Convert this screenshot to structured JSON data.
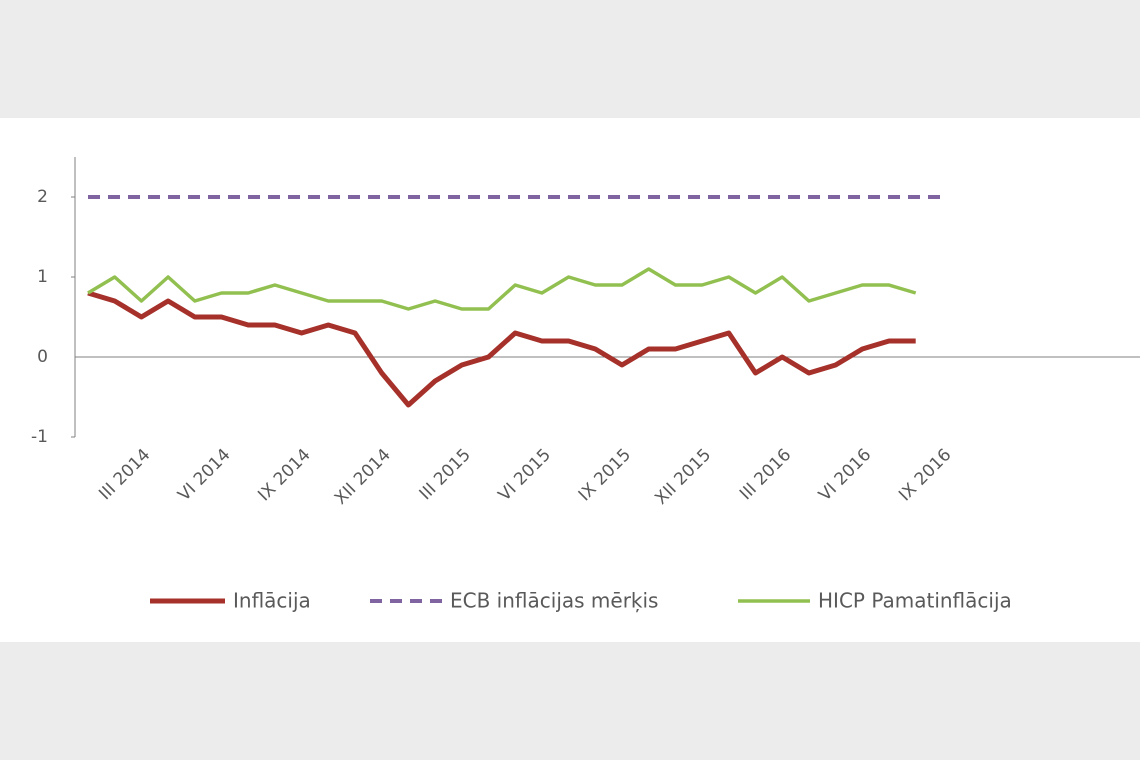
{
  "chart_data": {
    "type": "line",
    "categories": [
      null,
      null,
      "III 2014",
      null,
      null,
      "VI 2014",
      null,
      null,
      "IX 2014",
      null,
      null,
      "XII 2014",
      null,
      null,
      "III 2015",
      null,
      null,
      "VI 2015",
      null,
      null,
      "IX 2015",
      null,
      null,
      "XII 2015",
      null,
      null,
      "III 2016",
      null,
      null,
      "VI 2016",
      null,
      null,
      "IX 2016"
    ],
    "series": [
      {
        "name": "Inflācija",
        "color": "#a5312a",
        "dash": false,
        "values": [
          0.8,
          0.7,
          0.5,
          0.7,
          0.5,
          0.5,
          0.4,
          0.4,
          0.3,
          0.4,
          0.3,
          -0.2,
          -0.6,
          -0.3,
          -0.1,
          0.0,
          0.3,
          0.2,
          0.2,
          0.1,
          -0.1,
          0.1,
          0.1,
          0.2,
          0.3,
          -0.2,
          0.0,
          -0.2,
          -0.1,
          0.1,
          0.2,
          0.2,
          null
        ]
      },
      {
        "name": "ECB inflācijas mērķis",
        "color": "#8064a2",
        "dash": true,
        "values": [
          2,
          2,
          2,
          2,
          2,
          2,
          2,
          2,
          2,
          2,
          2,
          2,
          2,
          2,
          2,
          2,
          2,
          2,
          2,
          2,
          2,
          2,
          2,
          2,
          2,
          2,
          2,
          2,
          2,
          2,
          2,
          2,
          2
        ]
      },
      {
        "name": "HICP Pamatinflācija",
        "color": "#92c050",
        "dash": false,
        "values": [
          0.8,
          1.0,
          0.7,
          1.0,
          0.7,
          0.8,
          0.8,
          0.9,
          0.8,
          0.7,
          0.7,
          0.7,
          0.6,
          0.7,
          0.6,
          0.6,
          0.9,
          0.8,
          1.0,
          0.9,
          0.9,
          1.1,
          0.9,
          0.9,
          1.0,
          0.8,
          1.0,
          0.7,
          0.8,
          0.9,
          0.9,
          0.8,
          null
        ]
      }
    ],
    "ylim": [
      -1,
      2.5
    ],
    "yticks": [
      -1,
      0,
      1,
      2
    ],
    "legend": "bottom"
  }
}
